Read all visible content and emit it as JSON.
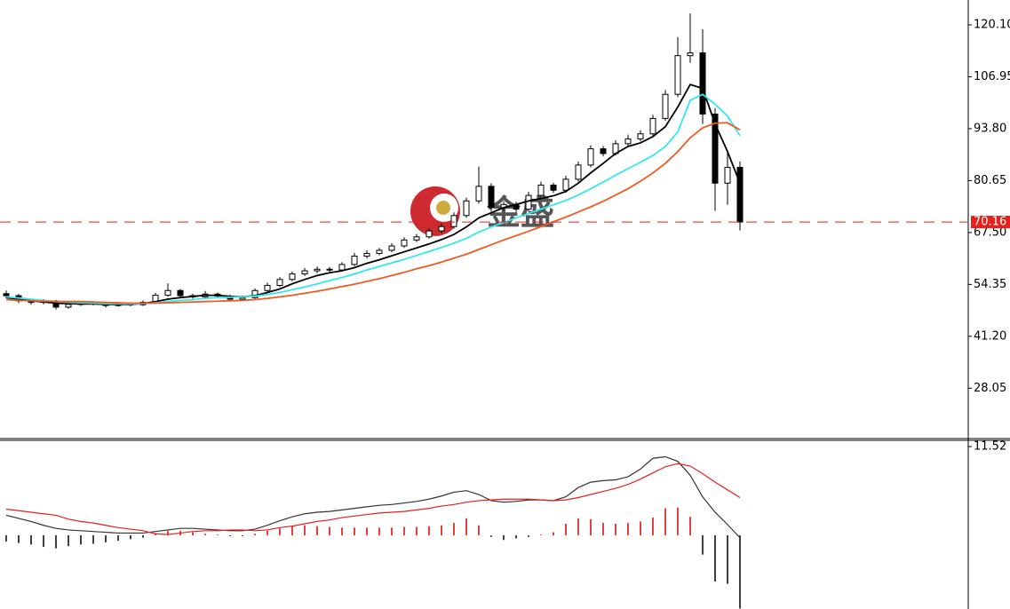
{
  "chart_data": [
    {
      "type": "candlestick",
      "annotation": "金盛",
      "open": [
        52.0,
        51.5,
        50.2,
        49.8,
        50.1,
        48.6,
        49.3,
        49.5,
        49.6,
        49.0,
        49.4,
        49.2,
        49.8,
        51.6,
        52.8,
        51.5,
        51.2,
        51.9,
        51.4,
        50.6,
        51.0,
        52.8,
        54.1,
        55.6,
        57.0,
        57.8,
        58.2,
        58.0,
        59.4,
        61.5,
        62.2,
        63.0,
        64.1,
        65.6,
        66.4,
        67.9,
        69.0,
        71.8,
        75.5,
        79.2,
        73.8,
        74.6,
        73.4,
        76.9,
        79.5,
        78.2,
        81.0,
        84.6,
        88.7,
        87.5,
        90.0,
        91.2,
        92.5,
        96.4,
        102.5,
        112.3,
        113.0,
        97.5,
        80.0,
        84.0
      ],
      "high": [
        52.8,
        51.9,
        50.7,
        50.6,
        50.4,
        49.8,
        50.0,
        50.1,
        50.0,
        49.9,
        49.8,
        50.3,
        52.2,
        54.6,
        53.2,
        52.0,
        52.7,
        52.3,
        51.8,
        51.5,
        53.3,
        54.8,
        56.2,
        57.6,
        58.5,
        58.9,
        58.8,
        60.0,
        62.3,
        63.0,
        63.6,
        64.8,
        66.3,
        67.1,
        68.5,
        69.8,
        72.6,
        76.3,
        84.2,
        80.0,
        75.4,
        75.3,
        77.8,
        80.4,
        80.1,
        81.9,
        85.5,
        89.6,
        89.4,
        90.9,
        92.3,
        93.4,
        97.3,
        103.6,
        117.0,
        123.0,
        119.0,
        99.0,
        88.0,
        85.5
      ],
      "low": [
        50.9,
        49.6,
        49.2,
        49.3,
        48.0,
        48.2,
        48.9,
        49.0,
        48.5,
        48.7,
        48.8,
        48.9,
        49.5,
        51.2,
        51.0,
        50.7,
        50.9,
        50.9,
        50.1,
        50.2,
        50.7,
        52.4,
        53.7,
        55.2,
        56.5,
        57.2,
        57.3,
        57.6,
        59.0,
        60.9,
        61.7,
        62.5,
        63.6,
        65.1,
        65.9,
        67.3,
        68.5,
        71.2,
        74.8,
        72.8,
        73.0,
        72.6,
        73.0,
        76.3,
        77.5,
        77.6,
        80.4,
        84.0,
        86.8,
        87.0,
        89.5,
        90.6,
        92.0,
        95.8,
        101.8,
        110.5,
        95.0,
        73.0,
        74.5,
        68.0
      ],
      "close": [
        51.5,
        50.2,
        49.8,
        50.1,
        48.6,
        49.3,
        49.5,
        49.6,
        49.0,
        49.4,
        49.2,
        49.8,
        51.6,
        52.8,
        51.5,
        51.2,
        51.9,
        51.4,
        50.6,
        51.0,
        52.8,
        54.1,
        55.6,
        57.0,
        57.8,
        58.2,
        58.0,
        59.4,
        61.5,
        62.2,
        63.0,
        64.1,
        65.6,
        66.4,
        67.9,
        69.0,
        71.8,
        75.5,
        79.2,
        73.8,
        74.6,
        73.4,
        76.9,
        79.5,
        78.2,
        81.0,
        84.6,
        88.7,
        87.5,
        90.0,
        91.2,
        92.5,
        96.4,
        102.5,
        112.3,
        113.0,
        97.5,
        80.0,
        84.0,
        70.16
      ],
      "bull_color": "#ffffff",
      "bear_color": "#000000",
      "series": [
        {
          "color": "#000000",
          "values": [
            51.0,
            50.6,
            50.2,
            49.9,
            49.6,
            49.5,
            49.4,
            49.4,
            49.3,
            49.3,
            49.3,
            49.5,
            50.0,
            50.6,
            51.0,
            51.3,
            51.6,
            51.6,
            51.3,
            51.2,
            51.5,
            52.3,
            53.2,
            54.5,
            55.6,
            56.6,
            57.3,
            57.8,
            58.6,
            59.7,
            60.6,
            61.6,
            62.6,
            63.6,
            64.6,
            65.7,
            67.0,
            68.9,
            71.2,
            72.5,
            73.8,
            74.6,
            75.5,
            76.1,
            76.8,
            77.9,
            80.0,
            82.6,
            85.0,
            87.5,
            89.3,
            90.2,
            91.8,
            94.3,
            99.3,
            105.0,
            104.0,
            95.0,
            88.0,
            80.0
          ]
        },
        {
          "color": "#33e6f0",
          "values": [
            51.2,
            50.9,
            50.6,
            50.3,
            50.0,
            49.8,
            49.7,
            49.6,
            49.5,
            49.5,
            49.4,
            49.5,
            49.7,
            50.0,
            50.3,
            50.5,
            50.8,
            51.0,
            51.1,
            51.2,
            51.4,
            51.8,
            52.3,
            53.0,
            53.7,
            54.5,
            55.3,
            56.1,
            57.0,
            58.0,
            58.9,
            59.8,
            60.7,
            61.7,
            62.7,
            63.7,
            64.8,
            66.0,
            67.6,
            68.9,
            70.0,
            71.2,
            72.3,
            73.4,
            74.5,
            75.6,
            77.0,
            78.6,
            80.3,
            82.0,
            83.7,
            85.3,
            87.0,
            89.3,
            93.0,
            101.0,
            102.5,
            100.0,
            97.0,
            92.0
          ]
        },
        {
          "color": "#f05a1e",
          "values": [
            50.5,
            50.3,
            50.2,
            50.1,
            50.0,
            50.0,
            50.0,
            49.9,
            49.8,
            49.7,
            49.6,
            49.6,
            49.6,
            49.7,
            49.8,
            49.9,
            50.0,
            50.1,
            50.2,
            50.3,
            50.5,
            50.8,
            51.2,
            51.6,
            52.1,
            52.6,
            53.2,
            53.8,
            54.4,
            55.1,
            55.8,
            56.6,
            57.4,
            58.3,
            59.1,
            60.0,
            61.0,
            62.0,
            63.2,
            64.4,
            65.6,
            66.7,
            67.8,
            69.0,
            70.2,
            71.4,
            72.7,
            74.0,
            75.4,
            77.0,
            78.6,
            80.5,
            82.6,
            85.0,
            88.0,
            91.5,
            94.0,
            95.2,
            95.3,
            93.5
          ]
        }
      ],
      "current_price": {
        "value": 70.16,
        "label": "70.16"
      },
      "current_price_color": "#e8201c",
      "ylim": [
        15.3,
        126.4
      ],
      "yticks": [
        {
          "value": 120.1,
          "label": "120.10"
        },
        {
          "value": 106.95,
          "label": "106.95"
        },
        {
          "value": 93.8,
          "label": "93.80"
        },
        {
          "value": 80.65,
          "label": "80.65"
        },
        {
          "value": 67.5,
          "label": "67.50"
        },
        {
          "value": 54.35,
          "label": "54.35"
        },
        {
          "value": 41.2,
          "label": "41.20"
        },
        {
          "value": 28.05,
          "label": "28.05"
        }
      ]
    },
    {
      "type": "macd",
      "histogram": [
        -0.8,
        -1.0,
        -1.2,
        -1.5,
        -1.7,
        -1.4,
        -1.2,
        -1.1,
        -0.9,
        -0.7,
        -0.5,
        -0.3,
        0.3,
        0.6,
        0.6,
        0.4,
        0.2,
        0.1,
        -0.1,
        -0.1,
        0.2,
        0.6,
        0.9,
        1.2,
        1.3,
        1.2,
        1.1,
        1.0,
        1.0,
        1.0,
        1.0,
        1.0,
        1.1,
        1.1,
        1.2,
        1.3,
        1.6,
        2.2,
        1.3,
        -0.2,
        -0.6,
        -0.4,
        -0.2,
        0.1,
        0.4,
        1.5,
        2.2,
        2.1,
        1.6,
        1.5,
        1.6,
        1.8,
        2.3,
        3.5,
        3.6,
        2.4,
        -2.5,
        -6.0,
        -6.3,
        -9.5
      ],
      "positive_color": "#e00000",
      "negative_color": "#000000",
      "series": [
        {
          "color": "#333333",
          "values": [
            2.6,
            2.2,
            1.8,
            1.3,
            0.9,
            0.7,
            0.6,
            0.5,
            0.4,
            0.3,
            0.3,
            0.3,
            0.5,
            0.7,
            0.9,
            0.9,
            0.8,
            0.7,
            0.6,
            0.6,
            0.8,
            1.3,
            1.9,
            2.4,
            2.8,
            3.0,
            3.1,
            3.3,
            3.5,
            3.7,
            3.9,
            4.0,
            4.2,
            4.4,
            4.7,
            5.1,
            5.6,
            5.8,
            5.3,
            4.5,
            4.3,
            4.4,
            4.6,
            4.6,
            4.5,
            5.0,
            6.2,
            6.9,
            7.1,
            7.2,
            7.6,
            8.6,
            10.0,
            10.2,
            9.6,
            7.8,
            5.0,
            3.0,
            1.4,
            -0.3
          ]
        },
        {
          "color": "#e8201c",
          "values": [
            3.4,
            3.2,
            3.0,
            2.8,
            2.6,
            2.1,
            1.8,
            1.6,
            1.3,
            1.0,
            0.8,
            0.6,
            0.2,
            0.1,
            0.3,
            0.5,
            0.6,
            0.6,
            0.7,
            0.7,
            0.6,
            0.7,
            1.0,
            1.2,
            1.5,
            1.8,
            2.0,
            2.3,
            2.5,
            2.7,
            2.9,
            3.0,
            3.1,
            3.3,
            3.5,
            3.8,
            4.0,
            4.3,
            4.5,
            4.6,
            4.7,
            4.7,
            4.7,
            4.6,
            4.5,
            4.6,
            4.9,
            5.3,
            5.7,
            6.1,
            6.6,
            7.3,
            8.1,
            8.9,
            9.3,
            9.0,
            8.0,
            6.9,
            5.9,
            4.9
          ]
        }
      ],
      "ylim": [
        -9.56,
        12.33
      ],
      "yticks": [
        11.52
      ]
    }
  ]
}
